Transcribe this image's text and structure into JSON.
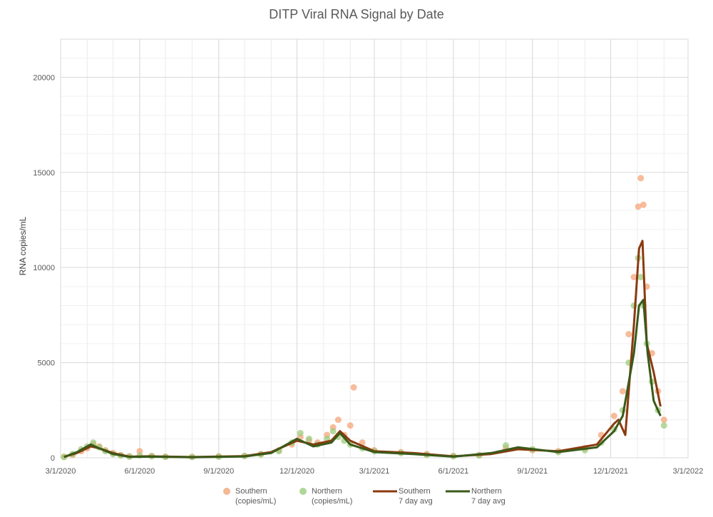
{
  "chart_data": {
    "type": "line",
    "title": "DITP Viral RNA Signal by Date",
    "xlabel": "",
    "ylabel": "RNA copies/mL",
    "x_ticks": [
      "3/1/2020",
      "6/1/2020",
      "9/1/2020",
      "12/1/2020",
      "3/1/2021",
      "6/1/2021",
      "9/1/2021",
      "12/1/2021",
      "3/1/2022"
    ],
    "xlim": [
      "2020-03-01",
      "2022-03-01"
    ],
    "y_ticks": [
      0,
      5000,
      10000,
      15000,
      20000
    ],
    "ylim": [
      0,
      22000
    ],
    "grid": true,
    "legend_position": "bottom",
    "colors": {
      "southern_points": "#f4a57a",
      "northern_points": "#9ccc7e",
      "southern_avg": "#8b3a0f",
      "northern_avg": "#3a5a1a",
      "grid": "#d9d9d9"
    },
    "series": [
      {
        "name": "Southern (copies/mL)",
        "legend_lines": [
          "Southern",
          "(copies/mL)"
        ],
        "kind": "scatter",
        "points": [
          [
            "2020-03-05",
            60
          ],
          [
            "2020-03-15",
            150
          ],
          [
            "2020-03-25",
            350
          ],
          [
            "2020-04-01",
            500
          ],
          [
            "2020-04-08",
            700
          ],
          [
            "2020-04-15",
            600
          ],
          [
            "2020-04-22",
            400
          ],
          [
            "2020-05-01",
            250
          ],
          [
            "2020-05-10",
            150
          ],
          [
            "2020-05-20",
            80
          ],
          [
            "2020-06-01",
            350
          ],
          [
            "2020-06-15",
            100
          ],
          [
            "2020-07-01",
            60
          ],
          [
            "2020-08-01",
            50
          ],
          [
            "2020-09-01",
            80
          ],
          [
            "2020-10-01",
            100
          ],
          [
            "2020-10-20",
            200
          ],
          [
            "2020-11-10",
            400
          ],
          [
            "2020-11-25",
            700
          ],
          [
            "2020-12-05",
            1100
          ],
          [
            "2020-12-15",
            900
          ],
          [
            "2020-12-25",
            800
          ],
          [
            "2021-01-05",
            1200
          ],
          [
            "2021-01-12",
            1600
          ],
          [
            "2021-01-18",
            2000
          ],
          [
            "2021-01-25",
            1200
          ],
          [
            "2021-02-01",
            1700
          ],
          [
            "2021-02-05",
            3700
          ],
          [
            "2021-02-15",
            800
          ],
          [
            "2021-03-01",
            400
          ],
          [
            "2021-04-01",
            300
          ],
          [
            "2021-05-01",
            200
          ],
          [
            "2021-06-01",
            100
          ],
          [
            "2021-07-01",
            150
          ],
          [
            "2021-08-01",
            500
          ],
          [
            "2021-09-01",
            400
          ],
          [
            "2021-10-01",
            350
          ],
          [
            "2021-11-01",
            500
          ],
          [
            "2021-11-20",
            1200
          ],
          [
            "2021-12-05",
            2200
          ],
          [
            "2021-12-15",
            3500
          ],
          [
            "2021-12-22",
            6500
          ],
          [
            "2021-12-28",
            9500
          ],
          [
            "2022-01-02",
            13200
          ],
          [
            "2022-01-05",
            14700
          ],
          [
            "2022-01-08",
            13300
          ],
          [
            "2022-01-12",
            9000
          ],
          [
            "2022-01-18",
            5500
          ],
          [
            "2022-01-25",
            3500
          ],
          [
            "2022-02-01",
            2000
          ]
        ]
      },
      {
        "name": "Northern (copies/mL)",
        "legend_lines": [
          "Northern",
          "(copies/mL)"
        ],
        "kind": "scatter",
        "points": [
          [
            "2020-03-05",
            40
          ],
          [
            "2020-03-15",
            200
          ],
          [
            "2020-03-25",
            450
          ],
          [
            "2020-04-01",
            600
          ],
          [
            "2020-04-08",
            800
          ],
          [
            "2020-04-15",
            550
          ],
          [
            "2020-04-22",
            350
          ],
          [
            "2020-05-01",
            200
          ],
          [
            "2020-05-10",
            120
          ],
          [
            "2020-05-20",
            60
          ],
          [
            "2020-06-01",
            120
          ],
          [
            "2020-06-15",
            80
          ],
          [
            "2020-07-01",
            50
          ],
          [
            "2020-08-01",
            40
          ],
          [
            "2020-09-01",
            60
          ],
          [
            "2020-10-01",
            90
          ],
          [
            "2020-10-20",
            180
          ],
          [
            "2020-11-10",
            350
          ],
          [
            "2020-11-25",
            800
          ],
          [
            "2020-12-05",
            1300
          ],
          [
            "2020-12-15",
            1000
          ],
          [
            "2020-12-25",
            700
          ],
          [
            "2021-01-05",
            1000
          ],
          [
            "2021-01-12",
            1400
          ],
          [
            "2021-01-18",
            1100
          ],
          [
            "2021-01-25",
            900
          ],
          [
            "2021-02-01",
            700
          ],
          [
            "2021-02-15",
            500
          ],
          [
            "2021-03-01",
            350
          ],
          [
            "2021-04-01",
            250
          ],
          [
            "2021-05-01",
            150
          ],
          [
            "2021-06-01",
            80
          ],
          [
            "2021-07-01",
            120
          ],
          [
            "2021-08-01",
            650
          ],
          [
            "2021-09-01",
            450
          ],
          [
            "2021-10-01",
            300
          ],
          [
            "2021-11-01",
            400
          ],
          [
            "2021-11-20",
            800
          ],
          [
            "2021-12-05",
            1500
          ],
          [
            "2021-12-15",
            2500
          ],
          [
            "2021-12-22",
            5000
          ],
          [
            "2021-12-28",
            8000
          ],
          [
            "2022-01-02",
            10500
          ],
          [
            "2022-01-05",
            9500
          ],
          [
            "2022-01-08",
            8000
          ],
          [
            "2022-01-12",
            6000
          ],
          [
            "2022-01-18",
            4000
          ],
          [
            "2022-01-25",
            2500
          ],
          [
            "2022-02-01",
            1700
          ]
        ]
      },
      {
        "name": "Southern 7 day avg",
        "legend_lines": [
          "Southern",
          "7 day avg"
        ],
        "kind": "line",
        "points": [
          [
            "2020-03-05",
            50
          ],
          [
            "2020-03-20",
            250
          ],
          [
            "2020-04-05",
            600
          ],
          [
            "2020-04-15",
            500
          ],
          [
            "2020-05-01",
            250
          ],
          [
            "2020-05-20",
            60
          ],
          [
            "2020-06-10",
            80
          ],
          [
            "2020-08-01",
            40
          ],
          [
            "2020-10-01",
            90
          ],
          [
            "2020-11-01",
            300
          ],
          [
            "2020-12-01",
            900
          ],
          [
            "2020-12-20",
            700
          ],
          [
            "2021-01-10",
            900
          ],
          [
            "2021-01-20",
            1400
          ],
          [
            "2021-02-01",
            900
          ],
          [
            "2021-03-01",
            350
          ],
          [
            "2021-04-15",
            250
          ],
          [
            "2021-06-01",
            80
          ],
          [
            "2021-07-15",
            200
          ],
          [
            "2021-08-15",
            450
          ],
          [
            "2021-10-01",
            350
          ],
          [
            "2021-11-15",
            700
          ],
          [
            "2021-12-05",
            1800
          ],
          [
            "2021-12-10",
            2000
          ],
          [
            "2021-12-18",
            1200
          ],
          [
            "2021-12-28",
            7000
          ],
          [
            "2022-01-03",
            11000
          ],
          [
            "2022-01-07",
            11400
          ],
          [
            "2022-01-12",
            6000
          ],
          [
            "2022-01-20",
            4500
          ],
          [
            "2022-01-28",
            2700
          ]
        ]
      },
      {
        "name": "Northern 7 day avg",
        "legend_lines": [
          "Northern",
          "7 day avg"
        ],
        "kind": "line",
        "points": [
          [
            "2020-03-05",
            40
          ],
          [
            "2020-03-20",
            300
          ],
          [
            "2020-04-05",
            700
          ],
          [
            "2020-04-15",
            500
          ],
          [
            "2020-05-01",
            200
          ],
          [
            "2020-05-20",
            50
          ],
          [
            "2020-06-10",
            60
          ],
          [
            "2020-08-01",
            30
          ],
          [
            "2020-10-01",
            70
          ],
          [
            "2020-11-01",
            250
          ],
          [
            "2020-12-01",
            1000
          ],
          [
            "2020-12-20",
            600
          ],
          [
            "2021-01-10",
            800
          ],
          [
            "2021-01-20",
            1300
          ],
          [
            "2021-02-01",
            700
          ],
          [
            "2021-03-01",
            300
          ],
          [
            "2021-04-15",
            200
          ],
          [
            "2021-06-01",
            60
          ],
          [
            "2021-07-15",
            250
          ],
          [
            "2021-08-15",
            550
          ],
          [
            "2021-10-01",
            300
          ],
          [
            "2021-11-15",
            550
          ],
          [
            "2021-12-05",
            1400
          ],
          [
            "2021-12-15",
            2200
          ],
          [
            "2021-12-28",
            5500
          ],
          [
            "2022-01-03",
            8000
          ],
          [
            "2022-01-08",
            8300
          ],
          [
            "2022-01-13",
            5500
          ],
          [
            "2022-01-20",
            3000
          ],
          [
            "2022-01-28",
            2200
          ]
        ]
      }
    ]
  }
}
